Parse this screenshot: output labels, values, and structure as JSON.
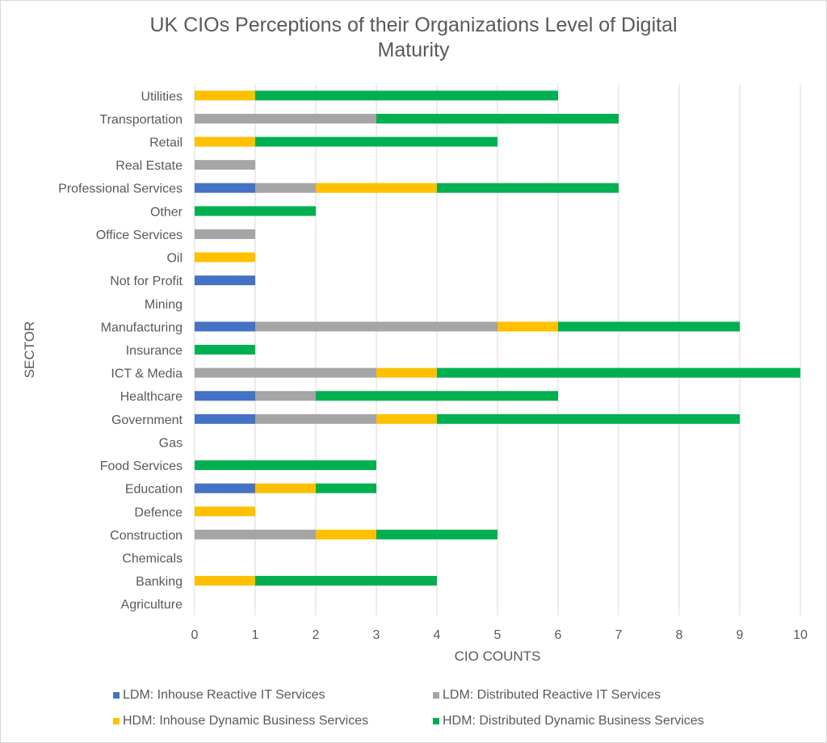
{
  "chart_data": {
    "type": "bar",
    "orientation": "horizontal",
    "stacked": true,
    "title": "UK CIOs Perceptions of their Organizations Level of Digital Maturity",
    "title_lines": [
      "UK CIOs Perceptions of their Organizations Level of Digital",
      "Maturity"
    ],
    "xlabel": "CIO COUNTS",
    "ylabel": "SECTOR",
    "xlim": [
      0,
      10
    ],
    "xticks": [
      "0",
      "1",
      "2",
      "3",
      "4",
      "5",
      "6",
      "7",
      "8",
      "9",
      "10"
    ],
    "grid": true,
    "legend_position": "bottom",
    "categories": [
      "Agriculture",
      "Banking",
      "Chemicals",
      "Construction",
      "Defence",
      "Education",
      "Food Services",
      "Gas",
      "Government",
      "Healthcare",
      "ICT & Media",
      "Insurance",
      "Manufacturing",
      "Mining",
      "Not for Profit",
      "Oil",
      "Office Services",
      "Other",
      "Professional Services",
      "Real Estate",
      "Retail",
      "Transportation",
      "Utilities"
    ],
    "series": [
      {
        "name": "LDM: Inhouse Reactive IT Services",
        "color": "#4472c4",
        "values": [
          0,
          0,
          0,
          0,
          0,
          1,
          0,
          0,
          1,
          1,
          0,
          0,
          1,
          0,
          1,
          0,
          0,
          0,
          1,
          0,
          0,
          0,
          0
        ]
      },
      {
        "name": "LDM: Distributed Reactive IT Services",
        "color": "#a5a5a5",
        "values": [
          0,
          0,
          0,
          2,
          0,
          0,
          0,
          0,
          2,
          1,
          3,
          0,
          4,
          0,
          0,
          0,
          1,
          0,
          1,
          1,
          0,
          3,
          0
        ]
      },
      {
        "name": "HDM: Inhouse Dynamic Business Services",
        "color": "#ffc000",
        "values": [
          0,
          1,
          0,
          1,
          1,
          1,
          0,
          0,
          1,
          0,
          1,
          0,
          1,
          0,
          0,
          1,
          0,
          0,
          2,
          0,
          1,
          0,
          1
        ]
      },
      {
        "name": "HDM: Distributed Dynamic Business Services",
        "color": "#00b050",
        "values": [
          0,
          3,
          0,
          2,
          0,
          1,
          3,
          0,
          5,
          4,
          6,
          1,
          3,
          0,
          0,
          0,
          0,
          2,
          3,
          0,
          4,
          4,
          5
        ]
      }
    ]
  }
}
